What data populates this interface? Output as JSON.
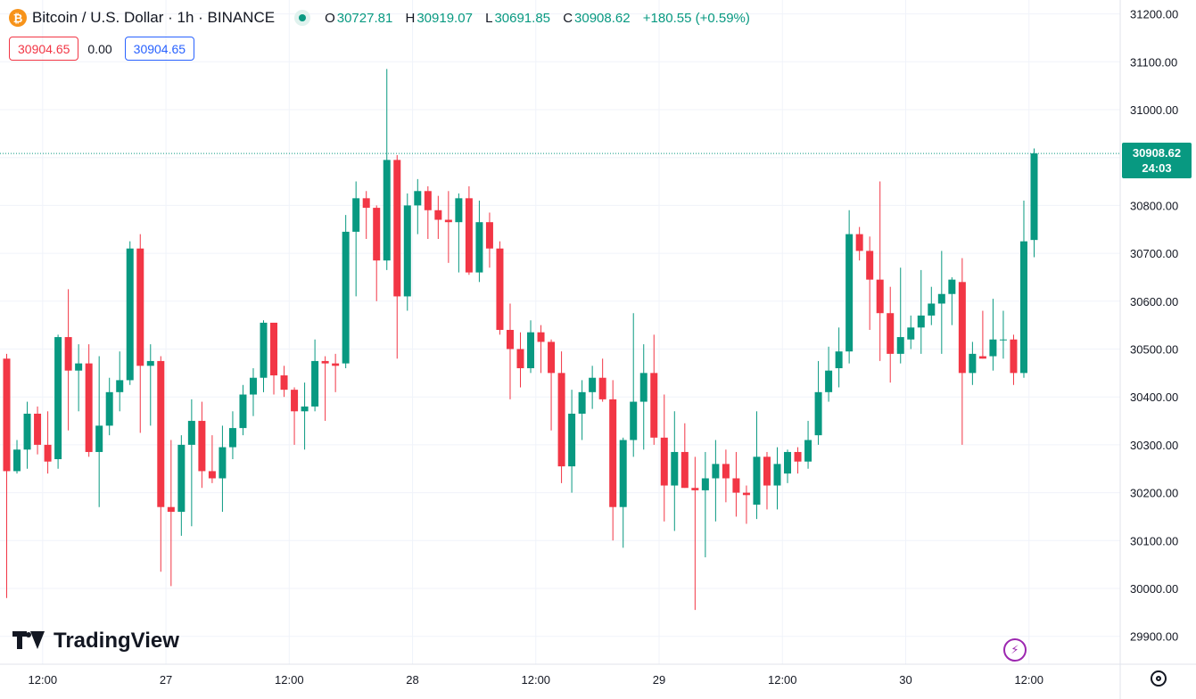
{
  "header": {
    "symbol_title": "Bitcoin / U.S. Dollar · 1h · BINANCE",
    "coin_glyph": "₿",
    "open_label": "O",
    "open": "30727.81",
    "high_label": "H",
    "high": "30919.07",
    "low_label": "L",
    "low": "30691.85",
    "close_label": "C",
    "close": "30908.62",
    "change": "+180.55 (+0.59%)",
    "sell_price": "30904.65",
    "spread": "0.00",
    "buy_price": "30904.65"
  },
  "last_price": {
    "price": "30908.62",
    "countdown": "24:03",
    "value": 30908.62
  },
  "branding": {
    "logo_text": "TradingView"
  },
  "colors": {
    "up": "#089981",
    "down": "#f23645",
    "grid": "#f0f3fa",
    "text": "#131722"
  },
  "icons": {
    "coin": "bitcoin-icon",
    "live": "live-status-icon",
    "logo": "tradingview-logo-icon",
    "bolt": "bolt-icon",
    "settings": "gear-icon"
  },
  "chart_data": {
    "type": "candlestick",
    "y_axis": {
      "min": 29850,
      "max": 31220,
      "ticks": [
        31200,
        31100,
        31000,
        30900,
        30800,
        30700,
        30600,
        30500,
        30400,
        30300,
        30200,
        30100,
        30000,
        29900
      ]
    },
    "x_axis": {
      "labels": [
        {
          "text": "12:00",
          "bar": 3.5
        },
        {
          "text": "27",
          "bar": 15.5
        },
        {
          "text": "12:00",
          "bar": 27.5
        },
        {
          "text": "28",
          "bar": 39.5
        },
        {
          "text": "12:00",
          "bar": 51.5
        },
        {
          "text": "29",
          "bar": 63.5
        },
        {
          "text": "12:00",
          "bar": 75.5
        },
        {
          "text": "30",
          "bar": 87.5
        },
        {
          "text": "12:00",
          "bar": 99.5
        }
      ],
      "bar_count_visible": 117
    },
    "grid": true,
    "candles": [
      [
        30480,
        30490,
        29980,
        30245
      ],
      [
        30245,
        30310,
        30240,
        30290
      ],
      [
        30290,
        30390,
        30250,
        30365
      ],
      [
        30365,
        30380,
        30280,
        30300
      ],
      [
        30300,
        30370,
        30240,
        30265
      ],
      [
        30270,
        30530,
        30250,
        30525
      ],
      [
        30525,
        30625,
        30330,
        30455
      ],
      [
        30455,
        30510,
        30370,
        30470
      ],
      [
        30470,
        30510,
        30275,
        30285
      ],
      [
        30285,
        30485,
        30170,
        30340
      ],
      [
        30340,
        30440,
        30320,
        30410
      ],
      [
        30410,
        30495,
        30370,
        30435
      ],
      [
        30435,
        30725,
        30425,
        30710
      ],
      [
        30710,
        30740,
        30325,
        30465
      ],
      [
        30465,
        30510,
        30340,
        30475
      ],
      [
        30475,
        30485,
        30035,
        30170
      ],
      [
        30170,
        30310,
        30005,
        30160
      ],
      [
        30160,
        30320,
        30110,
        30300
      ],
      [
        30300,
        30395,
        30130,
        30350
      ],
      [
        30350,
        30390,
        30210,
        30245
      ],
      [
        30245,
        30320,
        30220,
        30230
      ],
      [
        30230,
        30340,
        30160,
        30295
      ],
      [
        30295,
        30370,
        30270,
        30335
      ],
      [
        30335,
        30425,
        30320,
        30405
      ],
      [
        30405,
        30460,
        30360,
        30440
      ],
      [
        30440,
        30560,
        30410,
        30555
      ],
      [
        30555,
        30555,
        30405,
        30445
      ],
      [
        30445,
        30465,
        30400,
        30415
      ],
      [
        30415,
        30420,
        30300,
        30370
      ],
      [
        30370,
        30430,
        30290,
        30380
      ],
      [
        30380,
        30520,
        30370,
        30475
      ],
      [
        30475,
        30485,
        30350,
        30470
      ],
      [
        30470,
        30490,
        30410,
        30465
      ],
      [
        30470,
        30780,
        30460,
        30745
      ],
      [
        30745,
        30850,
        30610,
        30815
      ],
      [
        30815,
        30830,
        30730,
        30795
      ],
      [
        30795,
        30800,
        30600,
        30685
      ],
      [
        30685,
        31085,
        30665,
        30895
      ],
      [
        30895,
        30905,
        30480,
        30610
      ],
      [
        30610,
        30825,
        30580,
        30800
      ],
      [
        30800,
        30855,
        30740,
        30830
      ],
      [
        30830,
        30840,
        30730,
        30790
      ],
      [
        30790,
        30820,
        30730,
        30770
      ],
      [
        30770,
        30830,
        30680,
        30765
      ],
      [
        30765,
        30825,
        30660,
        30815
      ],
      [
        30815,
        30840,
        30655,
        30660
      ],
      [
        30660,
        30810,
        30640,
        30765
      ],
      [
        30765,
        30785,
        30670,
        30710
      ],
      [
        30710,
        30725,
        30530,
        30540
      ],
      [
        30540,
        30595,
        30395,
        30500
      ],
      [
        30500,
        30535,
        30420,
        30460
      ],
      [
        30460,
        30560,
        30450,
        30535
      ],
      [
        30535,
        30550,
        30450,
        30515
      ],
      [
        30515,
        30520,
        30330,
        30450
      ],
      [
        30450,
        30495,
        30220,
        30255
      ],
      [
        30255,
        30415,
        30200,
        30365
      ],
      [
        30365,
        30435,
        30310,
        30410
      ],
      [
        30410,
        30465,
        30375,
        30440
      ],
      [
        30440,
        30480,
        30390,
        30395
      ],
      [
        30395,
        30435,
        30100,
        30170
      ],
      [
        30170,
        30315,
        30085,
        30310
      ],
      [
        30310,
        30575,
        30275,
        30390
      ],
      [
        30390,
        30510,
        30290,
        30450
      ],
      [
        30450,
        30530,
        30300,
        30315
      ],
      [
        30315,
        30405,
        30140,
        30215
      ],
      [
        30215,
        30370,
        30120,
        30285
      ],
      [
        30285,
        30345,
        30210,
        30210
      ],
      [
        30210,
        30275,
        29955,
        30205
      ],
      [
        30205,
        30285,
        30065,
        30230
      ],
      [
        30230,
        30310,
        30140,
        30260
      ],
      [
        30260,
        30290,
        30180,
        30230
      ],
      [
        30230,
        30285,
        30150,
        30200
      ],
      [
        30200,
        30215,
        30135,
        30195
      ],
      [
        30175,
        30370,
        30145,
        30275
      ],
      [
        30275,
        30285,
        30165,
        30215
      ],
      [
        30215,
        30295,
        30165,
        30260
      ],
      [
        30240,
        30290,
        30220,
        30285
      ],
      [
        30285,
        30295,
        30240,
        30265
      ],
      [
        30265,
        30350,
        30250,
        30310
      ],
      [
        30320,
        30475,
        30300,
        30410
      ],
      [
        30410,
        30505,
        30390,
        30455
      ],
      [
        30460,
        30545,
        30420,
        30495
      ],
      [
        30495,
        30790,
        30470,
        30740
      ],
      [
        30740,
        30755,
        30685,
        30705
      ],
      [
        30705,
        30735,
        30540,
        30645
      ],
      [
        30645,
        30850,
        30475,
        30575
      ],
      [
        30575,
        30630,
        30430,
        30490
      ],
      [
        30490,
        30670,
        30470,
        30525
      ],
      [
        30520,
        30570,
        30500,
        30545
      ],
      [
        30545,
        30665,
        30490,
        30570
      ],
      [
        30570,
        30630,
        30550,
        30595
      ],
      [
        30595,
        30705,
        30490,
        30615
      ],
      [
        30615,
        30650,
        30550,
        30645
      ],
      [
        30640,
        30690,
        30300,
        30450
      ],
      [
        30450,
        30515,
        30425,
        30490
      ],
      [
        30485,
        30580,
        30480,
        30480
      ],
      [
        30485,
        30605,
        30455,
        30520
      ],
      [
        30520,
        30580,
        30480,
        30520
      ],
      [
        30520,
        30530,
        30425,
        30450
      ],
      [
        30450,
        30810,
        30440,
        30725
      ],
      [
        30727.81,
        30919.07,
        30691.85,
        30908.62
      ]
    ]
  }
}
